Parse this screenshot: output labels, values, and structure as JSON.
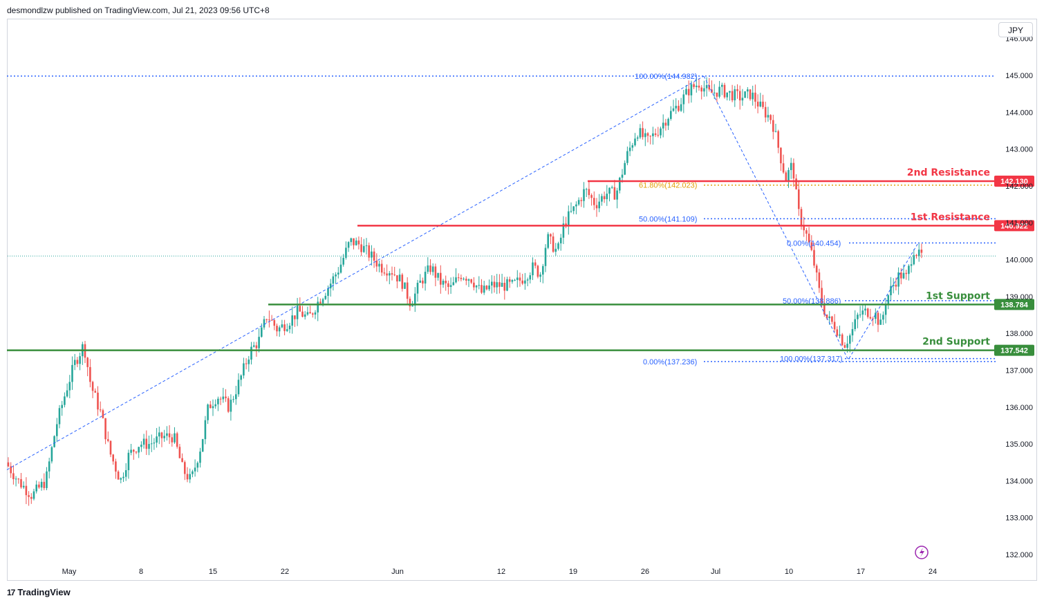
{
  "header": {
    "publisher_line": "desmondlzw published on TradingView.com, Jul 21, 2023 09:56 UTC+8"
  },
  "currency_label": "JPY",
  "footer": {
    "brand": "TradingView",
    "logo_glyph": "17"
  },
  "colors": {
    "up": "#26a69a",
    "down": "#ef5350",
    "resistance": "#f23645",
    "support": "#388e3c",
    "fib": "#2962ff",
    "fib_gold": "#e3a008",
    "grid": "#f0f3fa"
  },
  "chart_data": {
    "type": "candlestick",
    "y_axis": {
      "ticks": [
        "132.000",
        "133.000",
        "134.000",
        "135.000",
        "136.000",
        "137.000",
        "138.000",
        "139.000",
        "140.000",
        "141.000",
        "142.000",
        "143.000",
        "144.000",
        "145.000",
        "146.000"
      ],
      "range": [
        131.5,
        146.3
      ]
    },
    "x_axis": {
      "labels": [
        {
          "label": "May",
          "x": 100
        },
        {
          "label": "8",
          "x": 204
        },
        {
          "label": "15",
          "x": 308
        },
        {
          "label": "22",
          "x": 412
        },
        {
          "label": "Jun",
          "x": 575
        },
        {
          "label": "12",
          "x": 725
        },
        {
          "label": "19",
          "x": 829
        },
        {
          "label": "26",
          "x": 933
        },
        {
          "label": "Jul",
          "x": 1035
        },
        {
          "label": "10",
          "x": 1141
        },
        {
          "label": "17",
          "x": 1245
        },
        {
          "label": "24",
          "x": 1349
        }
      ]
    },
    "levels": [
      {
        "name": "2nd Resistance",
        "value": 142.13,
        "tag": "142.130",
        "kind": "resistance",
        "x_start": 850
      },
      {
        "name": "1st Resistance",
        "value": 140.922,
        "tag": "140.922",
        "kind": "resistance",
        "x_start": 517
      },
      {
        "name": "1st Support",
        "value": 138.784,
        "tag": "138.784",
        "kind": "support",
        "x_start": 388
      },
      {
        "name": "2nd Support",
        "value": 137.542,
        "tag": "137.542",
        "kind": "support",
        "x_start": 10
      }
    ],
    "fib_labels": [
      {
        "text": "100.00%(144.982)",
        "value": 144.982,
        "x": 918,
        "line_from": 10,
        "dash": "2,3"
      },
      {
        "text": "61.80%(142.023)",
        "value": 142.023,
        "x": 924,
        "line_from": 1018,
        "dash": "2,3",
        "gold": true
      },
      {
        "text": "50.00%(141.109)",
        "value": 141.109,
        "x": 924,
        "line_from": 1018,
        "dash": "2,3"
      },
      {
        "text": "0.00%(140.454)",
        "value": 140.454,
        "x": 1138,
        "line_from": 1228,
        "dash": "2,3"
      },
      {
        "text": "50.00%(138.886)",
        "value": 138.886,
        "x": 1132,
        "line_from": 1222,
        "dash": "2,3"
      },
      {
        "text": "100.00%(137.317)",
        "value": 137.317,
        "x": 1128,
        "line_from": 1222,
        "dash": "2,3"
      },
      {
        "text": "0.00%(137.236)",
        "value": 137.236,
        "x": 930,
        "line_from": 1018,
        "dash": "2,3"
      }
    ],
    "last_price": 140.1,
    "trend_lines": [
      {
        "from": [
          10,
          134.3
        ],
        "to": [
          1018,
          144.98
        ]
      },
      {
        "from": [
          1018,
          144.98
        ],
        "to": [
          1228,
          137.24
        ]
      },
      {
        "from": [
          1228,
          137.32
        ],
        "to": [
          1328,
          140.45
        ]
      }
    ],
    "candles_anchor_path": [
      [
        12,
        134.5
      ],
      [
        30,
        134.0
      ],
      [
        50,
        133.6
      ],
      [
        70,
        134.0
      ],
      [
        85,
        135.5
      ],
      [
        100,
        136.5
      ],
      [
        112,
        137.2
      ],
      [
        125,
        137.7
      ],
      [
        135,
        136.6
      ],
      [
        150,
        135.8
      ],
      [
        162,
        134.8
      ],
      [
        178,
        134.0
      ],
      [
        190,
        134.7
      ],
      [
        205,
        135.0
      ],
      [
        220,
        135.0
      ],
      [
        240,
        135.2
      ],
      [
        255,
        135.2
      ],
      [
        268,
        134.3
      ],
      [
        280,
        134.0
      ],
      [
        295,
        135.0
      ],
      [
        305,
        136.0
      ],
      [
        318,
        136.3
      ],
      [
        335,
        136.0
      ],
      [
        350,
        136.7
      ],
      [
        365,
        137.5
      ],
      [
        378,
        137.8
      ],
      [
        390,
        138.5
      ],
      [
        405,
        138.1
      ],
      [
        420,
        138.3
      ],
      [
        435,
        138.6
      ],
      [
        450,
        138.4
      ],
      [
        465,
        138.9
      ],
      [
        480,
        139.3
      ],
      [
        495,
        139.8
      ],
      [
        510,
        140.5
      ],
      [
        525,
        140.4
      ],
      [
        540,
        140.1
      ],
      [
        555,
        139.8
      ],
      [
        570,
        139.7
      ],
      [
        585,
        139.4
      ],
      [
        598,
        138.8
      ],
      [
        612,
        139.4
      ],
      [
        627,
        139.8
      ],
      [
        640,
        139.4
      ],
      [
        655,
        139.2
      ],
      [
        670,
        139.6
      ],
      [
        685,
        139.5
      ],
      [
        700,
        139.1
      ],
      [
        715,
        139.3
      ],
      [
        730,
        139.3
      ],
      [
        745,
        139.3
      ],
      [
        760,
        139.5
      ],
      [
        775,
        139.8
      ],
      [
        785,
        139.6
      ],
      [
        795,
        140.6
      ],
      [
        810,
        140.2
      ],
      [
        820,
        141.0
      ],
      [
        835,
        141.4
      ],
      [
        850,
        141.9
      ],
      [
        865,
        141.5
      ],
      [
        880,
        141.8
      ],
      [
        895,
        141.8
      ],
      [
        910,
        142.8
      ],
      [
        925,
        143.5
      ],
      [
        940,
        143.2
      ],
      [
        955,
        143.5
      ],
      [
        970,
        143.9
      ],
      [
        985,
        144.2
      ],
      [
        1000,
        144.6
      ],
      [
        1015,
        144.8
      ],
      [
        1030,
        144.5
      ],
      [
        1045,
        144.6
      ],
      [
        1060,
        144.5
      ],
      [
        1075,
        144.4
      ],
      [
        1090,
        144.5
      ],
      [
        1105,
        144.1
      ],
      [
        1120,
        143.8
      ],
      [
        1130,
        143.0
      ],
      [
        1140,
        142.2
      ],
      [
        1150,
        142.6
      ],
      [
        1158,
        141.3
      ],
      [
        1168,
        140.8
      ],
      [
        1180,
        140.0
      ],
      [
        1190,
        139.0
      ],
      [
        1200,
        138.4
      ],
      [
        1212,
        138.2
      ],
      [
        1225,
        137.7
      ],
      [
        1235,
        138.0
      ],
      [
        1245,
        138.5
      ],
      [
        1258,
        138.6
      ],
      [
        1270,
        138.5
      ],
      [
        1278,
        138.2
      ],
      [
        1285,
        138.9
      ],
      [
        1295,
        139.3
      ],
      [
        1305,
        139.6
      ],
      [
        1315,
        139.5
      ],
      [
        1325,
        140.3
      ],
      [
        1333,
        140.1
      ]
    ]
  }
}
